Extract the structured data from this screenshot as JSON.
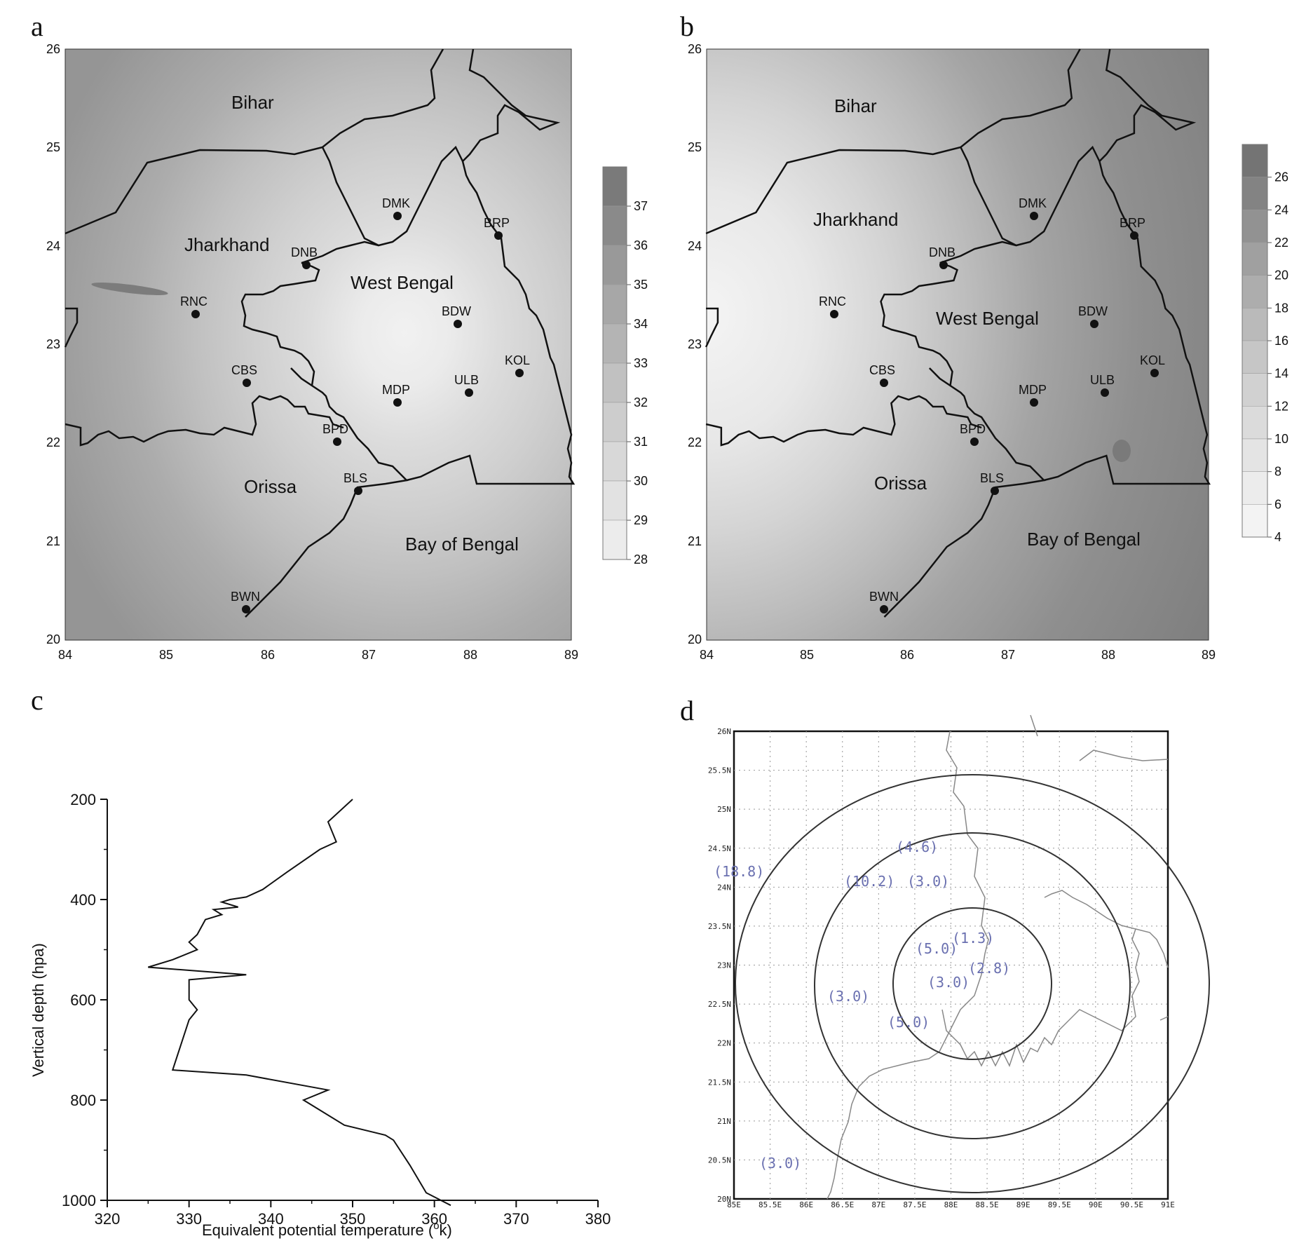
{
  "panels": {
    "a": {
      "letter": "a",
      "x_ticks": [
        "84",
        "85",
        "86",
        "87",
        "88",
        "89"
      ],
      "y_ticks": [
        "20",
        "21",
        "22",
        "23",
        "24",
        "25",
        "26"
      ],
      "regions": [
        "Bihar",
        "Jharkhand",
        "West Bengal",
        "Orissa",
        "Bay of Bengal"
      ],
      "stations": [
        "DMK",
        "BRP",
        "DNB",
        "RNC",
        "BDW",
        "CBS",
        "KOL",
        "MDP",
        "ULB",
        "BPD",
        "BLS",
        "BWN"
      ],
      "colorbar": {
        "labels": [
          "37",
          "36",
          "35",
          "34",
          "33",
          "32",
          "31",
          "30",
          "29",
          "28"
        ],
        "colors": [
          "#7a7a7a",
          "#8a8a8a",
          "#999999",
          "#a7a7a7",
          "#b4b4b4",
          "#c1c1c1",
          "#cdcdcd",
          "#d8d8d8",
          "#e2e2e2",
          "#ececec"
        ]
      }
    },
    "b": {
      "letter": "b",
      "x_ticks": [
        "84",
        "85",
        "86",
        "87",
        "88",
        "89"
      ],
      "y_ticks": [
        "20",
        "21",
        "22",
        "23",
        "24",
        "25",
        "26"
      ],
      "regions": [
        "Bihar",
        "Jharkhand",
        "West Bengal",
        "Orissa",
        "Bay of Bengal"
      ],
      "stations": [
        "DMK",
        "BRP",
        "DNB",
        "RNC",
        "BDW",
        "CBS",
        "KOL",
        "MDP",
        "ULB",
        "BPD",
        "BLS",
        "BWN"
      ],
      "colorbar": {
        "labels": [
          "26",
          "24",
          "22",
          "20",
          "18",
          "16",
          "14",
          "12",
          "10",
          "8",
          "6",
          "4"
        ],
        "colors": [
          "#747474",
          "#838383",
          "#929292",
          "#a0a0a0",
          "#adadad",
          "#bababa",
          "#c6c6c6",
          "#d1d1d1",
          "#dbdbdb",
          "#e4e4e4",
          "#ececec",
          "#f3f3f3"
        ]
      }
    },
    "c": {
      "letter": "c",
      "xlabel": "Equivalent potential temperature (",
      "xlabel_sup": "o",
      "xlabel_tail": "k)",
      "ylabel": "Vertical depth (hpa)",
      "x_ticks": [
        "320",
        "330",
        "340",
        "350",
        "360",
        "370",
        "380"
      ],
      "y_ticks": [
        "200",
        "400",
        "600",
        "800",
        "1000"
      ]
    },
    "d": {
      "letter": "d",
      "x_ticks": [
        "85E",
        "85.5E",
        "86E",
        "86.5E",
        "87E",
        "87.5E",
        "88E",
        "88.5E",
        "89E",
        "89.5E",
        "90E",
        "90.5E",
        "91E"
      ],
      "y_ticks": [
        "26N",
        "25.5N",
        "25N",
        "24.5N",
        "24N",
        "23.5N",
        "23N",
        "22.5N",
        "22N",
        "21.5N",
        "21N",
        "20.5N",
        "20N"
      ],
      "values": [
        "(4.6)",
        "(18.8)",
        "(10.2)",
        "(3.0)",
        "(1.3)",
        "(5.0)",
        "(2.8)",
        "(3.0)",
        "(3.0)",
        "(5.0)",
        "(3.0)"
      ]
    }
  },
  "chart_data": {
    "type": "line",
    "title": "",
    "xlabel": "Equivalent potential temperature (ok)",
    "ylabel": "Vertical depth (hpa)",
    "xlim": [
      320,
      380
    ],
    "ylim": [
      1000,
      200
    ],
    "x_ticks": [
      320,
      330,
      340,
      350,
      360,
      370,
      380
    ],
    "y_ticks": [
      200,
      400,
      600,
      800,
      1000
    ],
    "series": [
      {
        "x": [
          350,
          347,
          348,
          346,
          342,
          339,
          337,
          335,
          334,
          336,
          333,
          334,
          332,
          331,
          330,
          331,
          328,
          325,
          337,
          330,
          330,
          331,
          330,
          329,
          328,
          337,
          347,
          344,
          349,
          354,
          355,
          357,
          359,
          362
        ],
        "y": [
          200,
          245,
          285,
          300,
          345,
          380,
          395,
          400,
          405,
          415,
          420,
          430,
          440,
          470,
          485,
          500,
          520,
          535,
          550,
          560,
          600,
          620,
          640,
          690,
          740,
          750,
          780,
          800,
          850,
          870,
          880,
          930,
          985,
          1010
        ]
      }
    ]
  }
}
